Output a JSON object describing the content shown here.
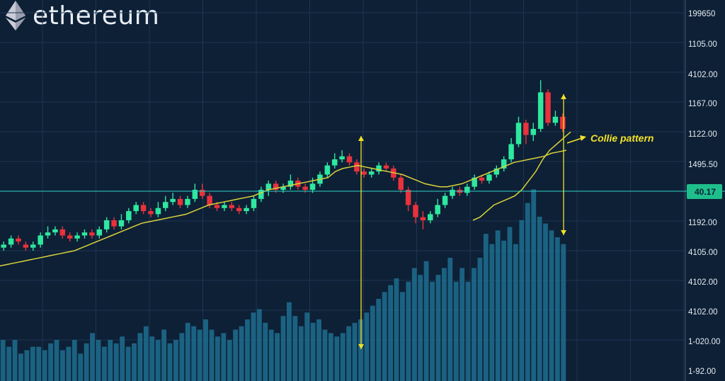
{
  "brand": {
    "name": "ethereum",
    "logo_icon": "ethereum-diamond-icon"
  },
  "colors": {
    "background": "#0d2036",
    "grid": "#1d3550",
    "bull": "#2ee8a0",
    "bear": "#e8323c",
    "moving_average": "#d9d23a",
    "volume": "#1f6e8f",
    "annotation": "#f2e227",
    "current_price_line": "#2fd0c0",
    "axis_text": "#e6ecf2"
  },
  "chart_data": {
    "type": "candlestick",
    "title": "",
    "y_tick_labels": [
      "199650",
      "1105.00",
      "4102.00",
      "1167.00",
      "1122.00",
      "1495.50",
      "1192.00",
      "4105.00",
      "4102.00",
      "4102.00",
      "1-020.00",
      "1-92.00"
    ],
    "current_price_label": "40.17",
    "annotation": "Collie pattern",
    "y_range": [
      0,
      100
    ],
    "current_price_level": 50,
    "candles": [
      {
        "o": 21,
        "c": 22,
        "h": 23,
        "l": 20,
        "dir": "up"
      },
      {
        "o": 22,
        "c": 24,
        "h": 25,
        "l": 21,
        "dir": "up"
      },
      {
        "o": 24,
        "c": 23,
        "h": 25,
        "l": 22,
        "dir": "down"
      },
      {
        "o": 22,
        "c": 21,
        "h": 23,
        "l": 20,
        "dir": "down"
      },
      {
        "o": 21,
        "c": 22,
        "h": 23,
        "l": 20,
        "dir": "up"
      },
      {
        "o": 22,
        "c": 25,
        "h": 26,
        "l": 21,
        "dir": "up"
      },
      {
        "o": 25,
        "c": 26,
        "h": 28,
        "l": 24,
        "dir": "up"
      },
      {
        "o": 26,
        "c": 27,
        "h": 28,
        "l": 25,
        "dir": "up"
      },
      {
        "o": 27,
        "c": 25,
        "h": 28,
        "l": 24,
        "dir": "down"
      },
      {
        "o": 25,
        "c": 24,
        "h": 26,
        "l": 23,
        "dir": "down"
      },
      {
        "o": 24,
        "c": 25,
        "h": 26,
        "l": 23,
        "dir": "up"
      },
      {
        "o": 25,
        "c": 26,
        "h": 27,
        "l": 24,
        "dir": "up"
      },
      {
        "o": 26,
        "c": 25,
        "h": 27,
        "l": 24,
        "dir": "down"
      },
      {
        "o": 25,
        "c": 27,
        "h": 28,
        "l": 24,
        "dir": "up"
      },
      {
        "o": 27,
        "c": 30,
        "h": 31,
        "l": 26,
        "dir": "up"
      },
      {
        "o": 30,
        "c": 28,
        "h": 31,
        "l": 27,
        "dir": "down"
      },
      {
        "o": 28,
        "c": 30,
        "h": 32,
        "l": 27,
        "dir": "up"
      },
      {
        "o": 30,
        "c": 33,
        "h": 34,
        "l": 29,
        "dir": "up"
      },
      {
        "o": 33,
        "c": 35,
        "h": 36,
        "l": 32,
        "dir": "up"
      },
      {
        "o": 35,
        "c": 33,
        "h": 36,
        "l": 32,
        "dir": "down"
      },
      {
        "o": 33,
        "c": 32,
        "h": 34,
        "l": 31,
        "dir": "down"
      },
      {
        "o": 32,
        "c": 34,
        "h": 36,
        "l": 31,
        "dir": "up"
      },
      {
        "o": 34,
        "c": 36,
        "h": 38,
        "l": 33,
        "dir": "up"
      },
      {
        "o": 36,
        "c": 37,
        "h": 39,
        "l": 35,
        "dir": "up"
      },
      {
        "o": 37,
        "c": 35,
        "h": 38,
        "l": 34,
        "dir": "down"
      },
      {
        "o": 35,
        "c": 37,
        "h": 38,
        "l": 34,
        "dir": "up"
      },
      {
        "o": 37,
        "c": 40,
        "h": 42,
        "l": 36,
        "dir": "up"
      },
      {
        "o": 40,
        "c": 38,
        "h": 42,
        "l": 37,
        "dir": "down"
      },
      {
        "o": 38,
        "c": 35,
        "h": 39,
        "l": 34,
        "dir": "down"
      },
      {
        "o": 35,
        "c": 34,
        "h": 36,
        "l": 33,
        "dir": "down"
      },
      {
        "o": 34,
        "c": 35,
        "h": 36,
        "l": 33,
        "dir": "up"
      },
      {
        "o": 35,
        "c": 34,
        "h": 36,
        "l": 33,
        "dir": "down"
      },
      {
        "o": 34,
        "c": 33,
        "h": 35,
        "l": 32,
        "dir": "down"
      },
      {
        "o": 33,
        "c": 34,
        "h": 35,
        "l": 32,
        "dir": "up"
      },
      {
        "o": 34,
        "c": 37,
        "h": 38,
        "l": 33,
        "dir": "up"
      },
      {
        "o": 37,
        "c": 40,
        "h": 41,
        "l": 36,
        "dir": "up"
      },
      {
        "o": 40,
        "c": 42,
        "h": 43,
        "l": 38,
        "dir": "up"
      },
      {
        "o": 42,
        "c": 40,
        "h": 43,
        "l": 39,
        "dir": "down"
      },
      {
        "o": 40,
        "c": 41,
        "h": 42,
        "l": 39,
        "dir": "up"
      },
      {
        "o": 41,
        "c": 43,
        "h": 45,
        "l": 40,
        "dir": "up"
      },
      {
        "o": 43,
        "c": 41,
        "h": 44,
        "l": 40,
        "dir": "down"
      },
      {
        "o": 41,
        "c": 40,
        "h": 42,
        "l": 39,
        "dir": "down"
      },
      {
        "o": 40,
        "c": 42,
        "h": 44,
        "l": 39,
        "dir": "up"
      },
      {
        "o": 42,
        "c": 45,
        "h": 46,
        "l": 41,
        "dir": "up"
      },
      {
        "o": 45,
        "c": 48,
        "h": 49,
        "l": 44,
        "dir": "up"
      },
      {
        "o": 48,
        "c": 50,
        "h": 52,
        "l": 47,
        "dir": "up"
      },
      {
        "o": 50,
        "c": 51,
        "h": 53,
        "l": 49,
        "dir": "up"
      },
      {
        "o": 51,
        "c": 49,
        "h": 52,
        "l": 48,
        "dir": "down"
      },
      {
        "o": 49,
        "c": 46,
        "h": 50,
        "l": 45,
        "dir": "down"
      },
      {
        "o": 46,
        "c": 45,
        "h": 47,
        "l": 44,
        "dir": "down"
      },
      {
        "o": 45,
        "c": 46,
        "h": 47,
        "l": 44,
        "dir": "up"
      },
      {
        "o": 46,
        "c": 48,
        "h": 49,
        "l": 45,
        "dir": "up"
      },
      {
        "o": 48,
        "c": 47,
        "h": 49,
        "l": 46,
        "dir": "down"
      },
      {
        "o": 47,
        "c": 44,
        "h": 48,
        "l": 43,
        "dir": "down"
      },
      {
        "o": 44,
        "c": 40,
        "h": 45,
        "l": 39,
        "dir": "down"
      },
      {
        "o": 40,
        "c": 35,
        "h": 41,
        "l": 33,
        "dir": "down"
      },
      {
        "o": 35,
        "c": 31,
        "h": 36,
        "l": 29,
        "dir": "down"
      },
      {
        "o": 31,
        "c": 30,
        "h": 33,
        "l": 27,
        "dir": "down"
      },
      {
        "o": 30,
        "c": 32,
        "h": 33,
        "l": 29,
        "dir": "up"
      },
      {
        "o": 32,
        "c": 35,
        "h": 37,
        "l": 31,
        "dir": "up"
      },
      {
        "o": 35,
        "c": 38,
        "h": 39,
        "l": 34,
        "dir": "up"
      },
      {
        "o": 38,
        "c": 40,
        "h": 41,
        "l": 37,
        "dir": "up"
      },
      {
        "o": 40,
        "c": 39,
        "h": 41,
        "l": 38,
        "dir": "down"
      },
      {
        "o": 39,
        "c": 41,
        "h": 42,
        "l": 38,
        "dir": "up"
      },
      {
        "o": 41,
        "c": 44,
        "h": 45,
        "l": 40,
        "dir": "up"
      },
      {
        "o": 44,
        "c": 43,
        "h": 45,
        "l": 42,
        "dir": "down"
      },
      {
        "o": 43,
        "c": 45,
        "h": 46,
        "l": 42,
        "dir": "up"
      },
      {
        "o": 45,
        "c": 47,
        "h": 48,
        "l": 44,
        "dir": "up"
      },
      {
        "o": 47,
        "c": 50,
        "h": 51,
        "l": 46,
        "dir": "up"
      },
      {
        "o": 50,
        "c": 55,
        "h": 57,
        "l": 49,
        "dir": "up"
      },
      {
        "o": 55,
        "c": 62,
        "h": 64,
        "l": 54,
        "dir": "up"
      },
      {
        "o": 62,
        "c": 58,
        "h": 63,
        "l": 55,
        "dir": "down"
      },
      {
        "o": 58,
        "c": 60,
        "h": 62,
        "l": 56,
        "dir": "up"
      },
      {
        "o": 60,
        "c": 72,
        "h": 76,
        "l": 59,
        "dir": "up"
      },
      {
        "o": 72,
        "c": 62,
        "h": 73,
        "l": 61,
        "dir": "down"
      },
      {
        "o": 62,
        "c": 64,
        "h": 66,
        "l": 61,
        "dir": "up"
      },
      {
        "o": 64,
        "c": 60,
        "h": 65,
        "l": 59,
        "dir": "down"
      }
    ],
    "moving_average": [
      15,
      15.5,
      16,
      16.5,
      17,
      17.5,
      18,
      18.5,
      19,
      19.5,
      20,
      21,
      22,
      23,
      24,
      25,
      26,
      27,
      28,
      29,
      29.5,
      30,
      30.5,
      31,
      31.5,
      32,
      33,
      34,
      35,
      35.5,
      36,
      36.5,
      37,
      37.5,
      38,
      39,
      40,
      40.5,
      41,
      41.5,
      42,
      42.5,
      43,
      43.5,
      44,
      46,
      47,
      47.5,
      48,
      47.5,
      47,
      46.5,
      46,
      45.5,
      45,
      44,
      43,
      42,
      41.5,
      41,
      41,
      41.5,
      42,
      43,
      44,
      45,
      46,
      47,
      48,
      49,
      49.5,
      50,
      50.5,
      51,
      52,
      52.5,
      53
    ],
    "moving_average_2": [
      30,
      31,
      33,
      35,
      36,
      37,
      38,
      40,
      43,
      46,
      50,
      53,
      55,
      57,
      59
    ],
    "volume": [
      12,
      10,
      12,
      8,
      9,
      10,
      10,
      9,
      11,
      12,
      9,
      10,
      12,
      8,
      11,
      14,
      12,
      10,
      12,
      11,
      13,
      10,
      11,
      14,
      16,
      13,
      12,
      15,
      11,
      12,
      14,
      17,
      16,
      15,
      18,
      15,
      13,
      14,
      12,
      15,
      16,
      18,
      20,
      21,
      17,
      15,
      14,
      19,
      23,
      19,
      16,
      20,
      17,
      18,
      15,
      14,
      13,
      14,
      16,
      17,
      18,
      20,
      22,
      24,
      26,
      28,
      30,
      26,
      29,
      33,
      31,
      35,
      29,
      31,
      33,
      36,
      29,
      33,
      29,
      33,
      36,
      43,
      40,
      44,
      41,
      45,
      40,
      47,
      52,
      56,
      48,
      46,
      44,
      42,
      40
    ]
  }
}
